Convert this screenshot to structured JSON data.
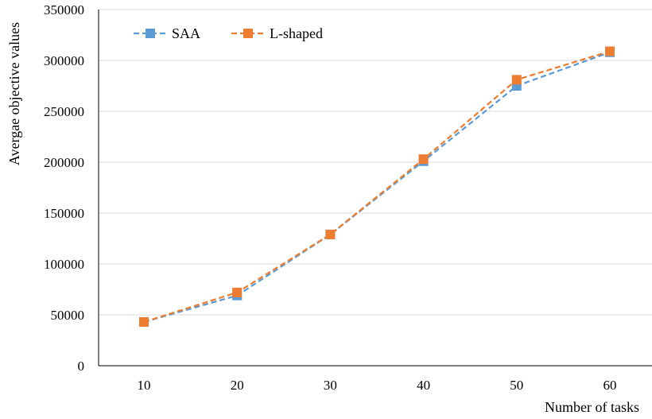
{
  "chart_data": {
    "type": "line",
    "categories": [
      "10",
      "20",
      "30",
      "40",
      "50",
      "60"
    ],
    "x": [
      10,
      20,
      30,
      40,
      50,
      60
    ],
    "series": [
      {
        "name": "SAA",
        "color": "#5B9BD5",
        "values": [
          43000,
          69000,
          129000,
          201000,
          275000,
          308000
        ]
      },
      {
        "name": "L-shaped",
        "color": "#ED7D31",
        "values": [
          43000,
          72000,
          129000,
          203000,
          281000,
          309000
        ]
      }
    ],
    "xlabel": "Number of tasks",
    "ylabel": "Avergae objective values",
    "ylim": [
      0,
      350000
    ],
    "yticks": [
      0,
      50000,
      100000,
      150000,
      200000,
      250000,
      300000,
      350000
    ],
    "ytick_labels": [
      "0",
      "50000",
      "100000",
      "150000",
      "200000",
      "250000",
      "300000",
      "350000"
    ],
    "grid": true,
    "line_style": "dashed",
    "marker": "square",
    "legend_position": "top-left"
  }
}
